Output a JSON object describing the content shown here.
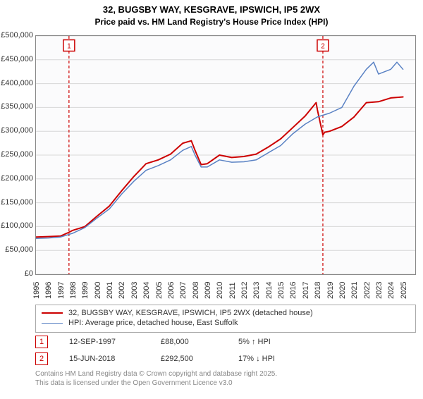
{
  "title_line1": "32, BUGSBY WAY, KESGRAVE, IPSWICH, IP5 2WX",
  "title_line2": "Price paid vs. HM Land Registry's House Price Index (HPI)",
  "chart": {
    "type": "line",
    "background_color": "#fbfbfc",
    "grid_color": "#d8d8d8",
    "axis_color": "#888888",
    "xlim": [
      1995,
      2026
    ],
    "ylim": [
      0,
      500000
    ],
    "ytick_step": 50000,
    "ytick_labels": [
      "£0",
      "£50,000",
      "£100,000",
      "£150,000",
      "£200,000",
      "£250,000",
      "£300,000",
      "£350,000",
      "£400,000",
      "£450,000",
      "£500,000"
    ],
    "xtick_labels": [
      "1995",
      "1996",
      "1997",
      "1998",
      "1999",
      "2000",
      "2001",
      "2002",
      "2003",
      "2004",
      "2005",
      "2006",
      "2007",
      "2008",
      "2009",
      "2010",
      "2011",
      "2012",
      "2013",
      "2014",
      "2015",
      "2016",
      "2017",
      "2018",
      "2019",
      "2020",
      "2021",
      "2022",
      "2023",
      "2024",
      "2025"
    ],
    "series": [
      {
        "name": "property",
        "color": "#cc0000",
        "width": 2,
        "points": [
          [
            1995,
            78000
          ],
          [
            1996,
            79000
          ],
          [
            1997,
            80000
          ],
          [
            1997.7,
            88000
          ],
          [
            1998,
            92000
          ],
          [
            1999,
            100000
          ],
          [
            2000,
            122000
          ],
          [
            2001,
            143000
          ],
          [
            2002,
            175000
          ],
          [
            2003,
            205000
          ],
          [
            2004,
            232000
          ],
          [
            2005,
            240000
          ],
          [
            2006,
            252000
          ],
          [
            2007,
            275000
          ],
          [
            2007.7,
            280000
          ],
          [
            2008,
            260000
          ],
          [
            2008.5,
            230000
          ],
          [
            2009,
            232000
          ],
          [
            2010,
            250000
          ],
          [
            2011,
            245000
          ],
          [
            2012,
            247000
          ],
          [
            2013,
            252000
          ],
          [
            2014,
            267000
          ],
          [
            2015,
            284000
          ],
          [
            2016,
            308000
          ],
          [
            2017,
            332000
          ],
          [
            2017.9,
            360000
          ],
          [
            2018,
            345000
          ],
          [
            2018.45,
            292500
          ],
          [
            2018.6,
            298000
          ],
          [
            2019,
            300000
          ],
          [
            2020,
            310000
          ],
          [
            2021,
            330000
          ],
          [
            2022,
            360000
          ],
          [
            2023,
            362000
          ],
          [
            2024,
            370000
          ],
          [
            2025,
            372000
          ]
        ]
      },
      {
        "name": "hpi",
        "color": "#5a82c4",
        "width": 1.5,
        "points": [
          [
            1995,
            75000
          ],
          [
            1996,
            76000
          ],
          [
            1997,
            78000
          ],
          [
            1998,
            86000
          ],
          [
            1999,
            98000
          ],
          [
            2000,
            118000
          ],
          [
            2001,
            137000
          ],
          [
            2002,
            168000
          ],
          [
            2003,
            195000
          ],
          [
            2004,
            218000
          ],
          [
            2005,
            228000
          ],
          [
            2006,
            240000
          ],
          [
            2007,
            260000
          ],
          [
            2007.7,
            268000
          ],
          [
            2008,
            250000
          ],
          [
            2008.5,
            225000
          ],
          [
            2009,
            225000
          ],
          [
            2010,
            240000
          ],
          [
            2011,
            235000
          ],
          [
            2012,
            236000
          ],
          [
            2013,
            240000
          ],
          [
            2014,
            255000
          ],
          [
            2015,
            270000
          ],
          [
            2016,
            295000
          ],
          [
            2017,
            315000
          ],
          [
            2018,
            330000
          ],
          [
            2019,
            338000
          ],
          [
            2020,
            350000
          ],
          [
            2021,
            395000
          ],
          [
            2022,
            430000
          ],
          [
            2022.6,
            445000
          ],
          [
            2023,
            420000
          ],
          [
            2024,
            430000
          ],
          [
            2024.5,
            445000
          ],
          [
            2025,
            430000
          ]
        ]
      }
    ],
    "vertical_markers": [
      {
        "id": "1",
        "x": 1997.7,
        "label_y": 480000
      },
      {
        "id": "2",
        "x": 2018.45,
        "label_y": 480000
      }
    ],
    "marker_line_color": "#cc0000",
    "marker_dash": "4,3"
  },
  "legend": [
    {
      "color": "#cc0000",
      "width": 2,
      "text": "32, BUGSBY WAY, KESGRAVE, IPSWICH, IP5 2WX (detached house)"
    },
    {
      "color": "#5a82c4",
      "width": 1.5,
      "text": "HPI: Average price, detached house, East Suffolk"
    }
  ],
  "marker_rows": [
    {
      "id": "1",
      "date": "12-SEP-1997",
      "price": "£88,000",
      "pct": "5% ↑ HPI"
    },
    {
      "id": "2",
      "date": "15-JUN-2018",
      "price": "£292,500",
      "pct": "17% ↓ HPI"
    }
  ],
  "footer_line1": "Contains HM Land Registry data © Crown copyright and database right 2025.",
  "footer_line2": "This data is licensed under the Open Government Licence v3.0",
  "typography": {
    "title_fontsize": 13,
    "title_weight": "bold",
    "tick_fontsize": 11,
    "legend_fontsize": 11,
    "footer_fontsize": 10,
    "footer_color": "#888888"
  }
}
